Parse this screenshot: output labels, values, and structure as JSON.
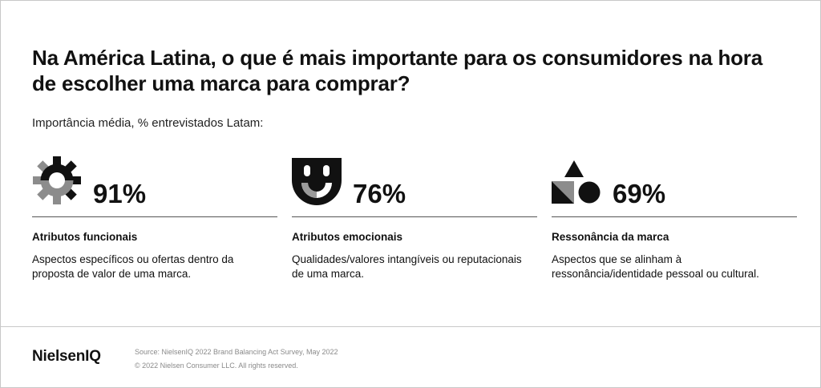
{
  "header": {
    "title": "Na América Latina, o que é mais importante para os consumidores na hora de escolher uma marca para comprar?",
    "subtitle": "Importância média, % entrevistados Latam:"
  },
  "metrics": [
    {
      "icon": "gear-icon",
      "percent": "91%",
      "label": "Atributos funcionais",
      "description": "Aspectos específicos ou ofertas dentro da proposta de valor de uma marca."
    },
    {
      "icon": "smile-face-icon",
      "percent": "76%",
      "label": "Atributos emocionais",
      "description": "Qualidades/valores intangíveis ou reputacionais de uma marca."
    },
    {
      "icon": "shapes-icon",
      "percent": "69%",
      "label": "Ressonância da marca",
      "description": "Aspectos que se alinham à ressonância/identidade pessoal ou cultural."
    }
  ],
  "footer": {
    "logo": "NielsenIQ",
    "source": "Source: NielsenIQ 2022 Brand Balancing Act Survey, May 2022",
    "copyright": "© 2022 Nielsen Consumer LLC. All rights reserved."
  },
  "colors": {
    "text": "#111111",
    "accent_gray": "#8c8c8c",
    "rule": "#555555",
    "muted": "#8a8a8a"
  }
}
